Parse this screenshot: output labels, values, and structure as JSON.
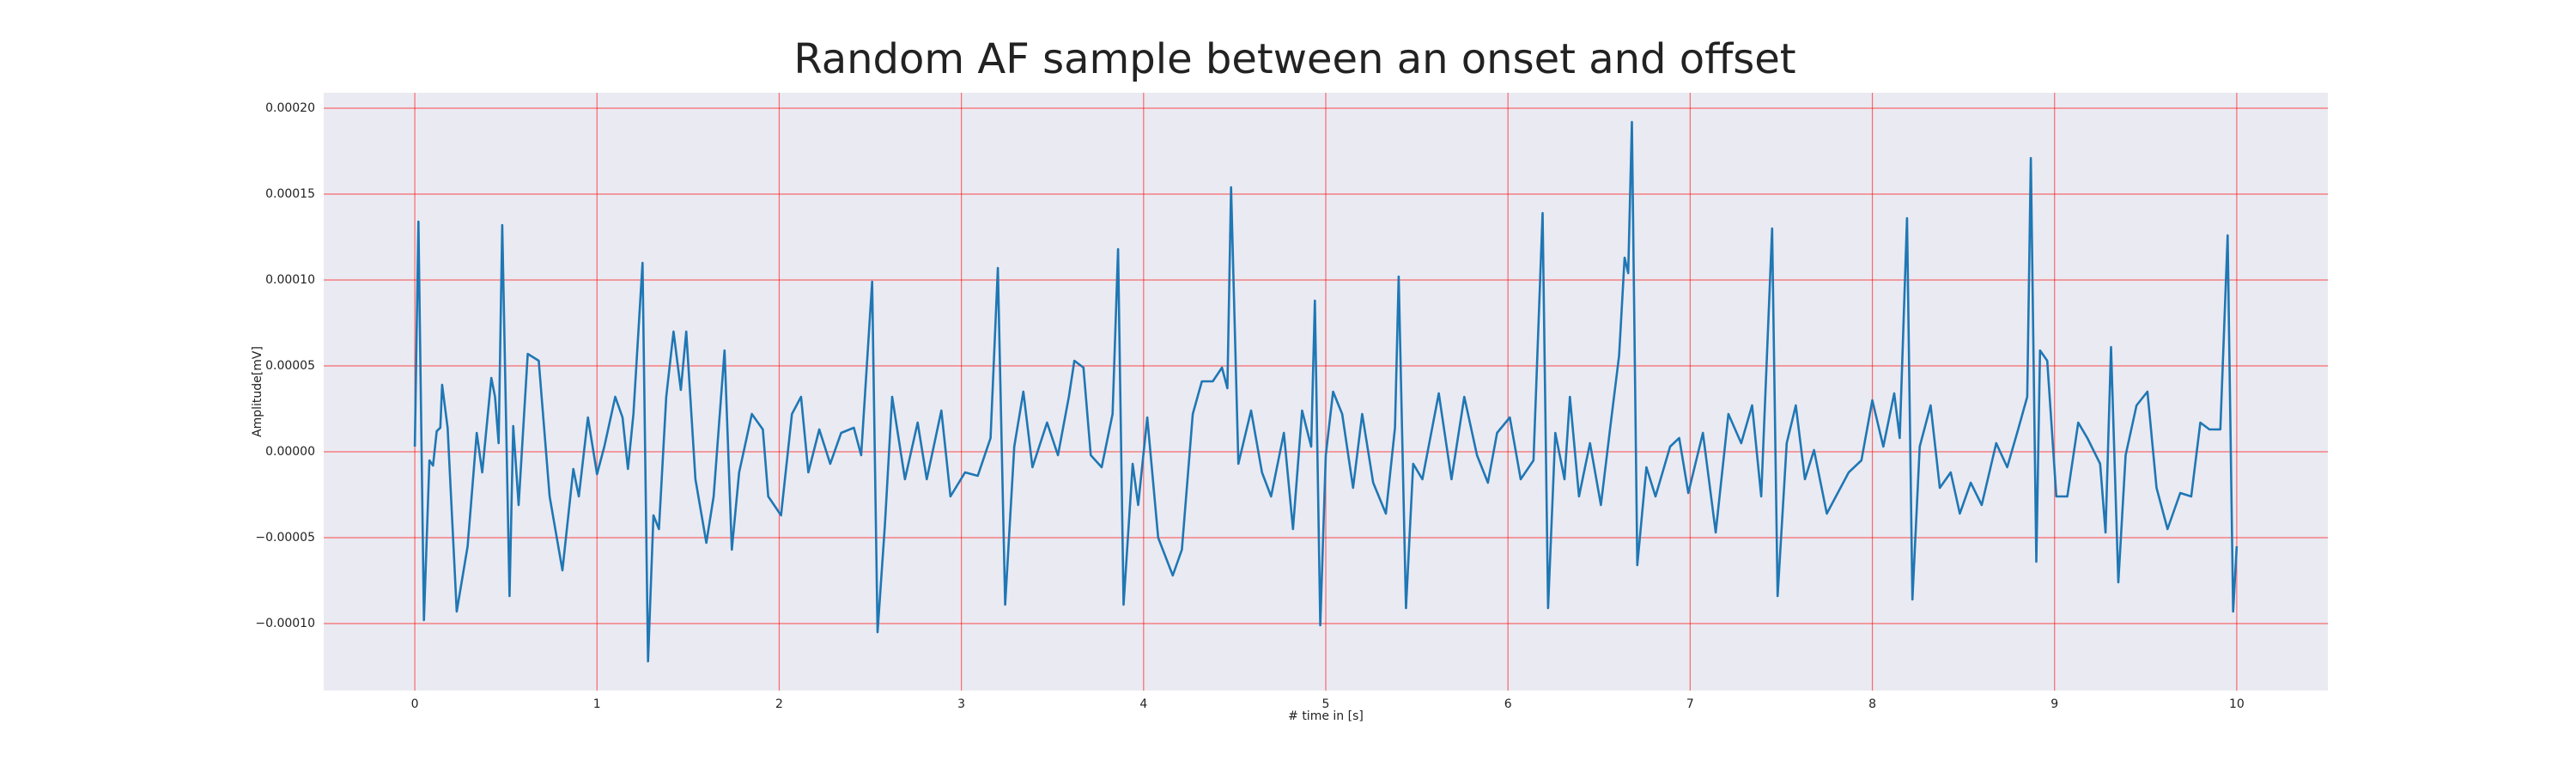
{
  "chart_data": {
    "type": "line",
    "title": "Random AF sample between an onset and offset",
    "xlabel": "# time in [s]",
    "ylabel": "Amplitude[mV]",
    "color": "#1f77b4",
    "grid": true,
    "grid_color": "#ff0000",
    "xlim": [
      -0.5,
      10.5
    ],
    "ylim": [
      -0.000139,
      0.000209
    ],
    "xticks": [
      0,
      1,
      2,
      3,
      4,
      5,
      6,
      7,
      8,
      9,
      10
    ],
    "yticks": [
      {
        "value": -0.0001,
        "label": "−0.00010"
      },
      {
        "value": -5e-05,
        "label": "−0.00005"
      },
      {
        "value": 0,
        "label": "0.00000"
      },
      {
        "value": 5e-05,
        "label": "0.00005"
      },
      {
        "value": 0.0001,
        "label": "0.00010"
      },
      {
        "value": 0.00015,
        "label": "0.00015"
      },
      {
        "value": 0.0002,
        "label": "0.00020"
      }
    ],
    "x": [
      0,
      0.02,
      0.05,
      0.08,
      0.1,
      0.12,
      0.14,
      0.15,
      0.18,
      0.23,
      0.29,
      0.34,
      0.37,
      0.42,
      0.44,
      0.46,
      0.48,
      0.52,
      0.54,
      0.57,
      0.62,
      0.68,
      0.74,
      0.81,
      0.87,
      0.9,
      0.95,
      1.0,
      1.04,
      1.1,
      1.14,
      1.17,
      1.2,
      1.25,
      1.28,
      1.31,
      1.34,
      1.38,
      1.42,
      1.46,
      1.49,
      1.54,
      1.6,
      1.64,
      1.7,
      1.74,
      1.78,
      1.85,
      1.91,
      1.94,
      2.01,
      2.07,
      2.12,
      2.16,
      2.22,
      2.28,
      2.34,
      2.41,
      2.45,
      2.51,
      2.54,
      2.58,
      2.62,
      2.69,
      2.76,
      2.81,
      2.89,
      2.94,
      3.02,
      3.09,
      3.16,
      3.2,
      3.24,
      3.29,
      3.34,
      3.39,
      3.47,
      3.53,
      3.59,
      3.62,
      3.67,
      3.71,
      3.77,
      3.83,
      3.86,
      3.89,
      3.94,
      3.97,
      4.02,
      4.08,
      4.16,
      4.21,
      4.27,
      4.32,
      4.38,
      4.43,
      4.46,
      4.48,
      4.52,
      4.59,
      4.65,
      4.7,
      4.77,
      4.82,
      4.87,
      4.92,
      4.94,
      4.97,
      5.0,
      5.04,
      5.09,
      5.15,
      5.2,
      5.26,
      5.33,
      5.38,
      5.4,
      5.44,
      5.48,
      5.53,
      5.62,
      5.69,
      5.76,
      5.83,
      5.89,
      5.94,
      6.01,
      6.07,
      6.14,
      6.19,
      6.22,
      6.26,
      6.31,
      6.34,
      6.39,
      6.45,
      6.51,
      6.56,
      6.61,
      6.64,
      6.66,
      6.68,
      6.71,
      6.76,
      6.81,
      6.89,
      6.94,
      6.99,
      7.07,
      7.14,
      7.21,
      7.28,
      7.34,
      7.39,
      7.45,
      7.48,
      7.53,
      7.58,
      7.63,
      7.68,
      7.75,
      7.81,
      7.87,
      7.94,
      8.0,
      8.06,
      8.12,
      8.15,
      8.19,
      8.22,
      8.26,
      8.32,
      8.37,
      8.43,
      8.48,
      8.54,
      8.6,
      8.68,
      8.74,
      8.8,
      8.85,
      8.87,
      8.9,
      8.92,
      8.96,
      9.01,
      9.07,
      9.13,
      9.18,
      9.25,
      9.28,
      9.31,
      9.35,
      9.39,
      9.45,
      9.51,
      9.56,
      9.62,
      9.69,
      9.75,
      9.8,
      9.85,
      9.91,
      9.95,
      9.98,
      10.0
    ],
    "values": [
      3e-06,
      0.000134,
      -9.8e-05,
      -5e-06,
      -8e-06,
      1.2e-05,
      1.4e-05,
      3.9e-05,
      1.4e-05,
      -9.3e-05,
      -5.5e-05,
      1.1e-05,
      -1.2e-05,
      4.3e-05,
      3.2e-05,
      5e-06,
      0.000132,
      -8.4e-05,
      1.5e-05,
      -3.1e-05,
      5.7e-05,
      5.3e-05,
      -2.6e-05,
      -6.9e-05,
      -1e-05,
      -2.6e-05,
      2e-05,
      -1.3e-05,
      3e-06,
      3.2e-05,
      2e-05,
      -1e-05,
      2.2e-05,
      0.00011,
      -0.000122,
      -3.7e-05,
      -4.5e-05,
      3.2e-05,
      7e-05,
      3.6e-05,
      7e-05,
      -1.6e-05,
      -5.3e-05,
      -2.6e-05,
      5.9e-05,
      -5.7e-05,
      -1.2e-05,
      2.2e-05,
      1.3e-05,
      -2.6e-05,
      -3.7e-05,
      2.2e-05,
      3.2e-05,
      -1.2e-05,
      1.3e-05,
      -7e-06,
      1.1e-05,
      1.4e-05,
      -2e-06,
      9.9e-05,
      -0.000105,
      -4.3e-05,
      3.2e-05,
      -1.6e-05,
      1.7e-05,
      -1.6e-05,
      2.4e-05,
      -2.6e-05,
      -1.2e-05,
      -1.4e-05,
      8e-06,
      0.000107,
      -8.9e-05,
      3e-06,
      3.5e-05,
      -9e-06,
      1.7e-05,
      -2e-06,
      3.2e-05,
      5.3e-05,
      4.9e-05,
      -2e-06,
      -9e-06,
      2.2e-05,
      0.000118,
      -8.9e-05,
      -7e-06,
      -3.1e-05,
      2e-05,
      -5e-05,
      -7.2e-05,
      -5.7e-05,
      2.2e-05,
      4.1e-05,
      4.1e-05,
      4.9e-05,
      3.7e-05,
      0.000154,
      -7e-06,
      2.4e-05,
      -1.2e-05,
      -2.6e-05,
      1.1e-05,
      -4.5e-05,
      2.4e-05,
      3e-06,
      8.8e-05,
      -0.000101,
      -2e-06,
      3.5e-05,
      2.2e-05,
      -2.1e-05,
      2.2e-05,
      -1.8e-05,
      -3.6e-05,
      1.4e-05,
      0.000102,
      -9.1e-05,
      -7e-06,
      -1.6e-05,
      3.4e-05,
      -1.6e-05,
      3.2e-05,
      -2e-06,
      -1.8e-05,
      1.1e-05,
      2e-05,
      -1.6e-05,
      -5e-06,
      0.000139,
      -9.1e-05,
      1.1e-05,
      -1.6e-05,
      3.2e-05,
      -2.6e-05,
      5e-06,
      -3.1e-05,
      1.3e-05,
      5.6e-05,
      0.000113,
      0.000104,
      0.000192,
      -6.6e-05,
      -9e-06,
      -2.6e-05,
      3e-06,
      8e-06,
      -2.4e-05,
      1.1e-05,
      -4.7e-05,
      2.2e-05,
      5e-06,
      2.7e-05,
      -2.6e-05,
      0.00013,
      -8.4e-05,
      5e-06,
      2.7e-05,
      -1.6e-05,
      1e-06,
      -3.6e-05,
      -2.4e-05,
      -1.2e-05,
      -5e-06,
      3e-05,
      3e-06,
      3.4e-05,
      8e-06,
      0.000136,
      -8.6e-05,
      3e-06,
      2.7e-05,
      -2.1e-05,
      -1.2e-05,
      -3.6e-05,
      -1.8e-05,
      -3.1e-05,
      5e-06,
      -9e-06,
      1.3e-05,
      3.2e-05,
      0.000171,
      -6.4e-05,
      5.9e-05,
      5.3e-05,
      -2.6e-05,
      -2.6e-05,
      1.7e-05,
      8e-06,
      -7e-06,
      -4.7e-05,
      6.1e-05,
      -7.6e-05,
      -2e-06,
      2.7e-05,
      3.5e-05,
      -2.1e-05,
      -4.5e-05,
      -2.4e-05,
      -2.6e-05,
      1.7e-05,
      1.3e-05,
      1.3e-05,
      0.000126,
      -9.3e-05,
      -5.5e-05
    ]
  }
}
